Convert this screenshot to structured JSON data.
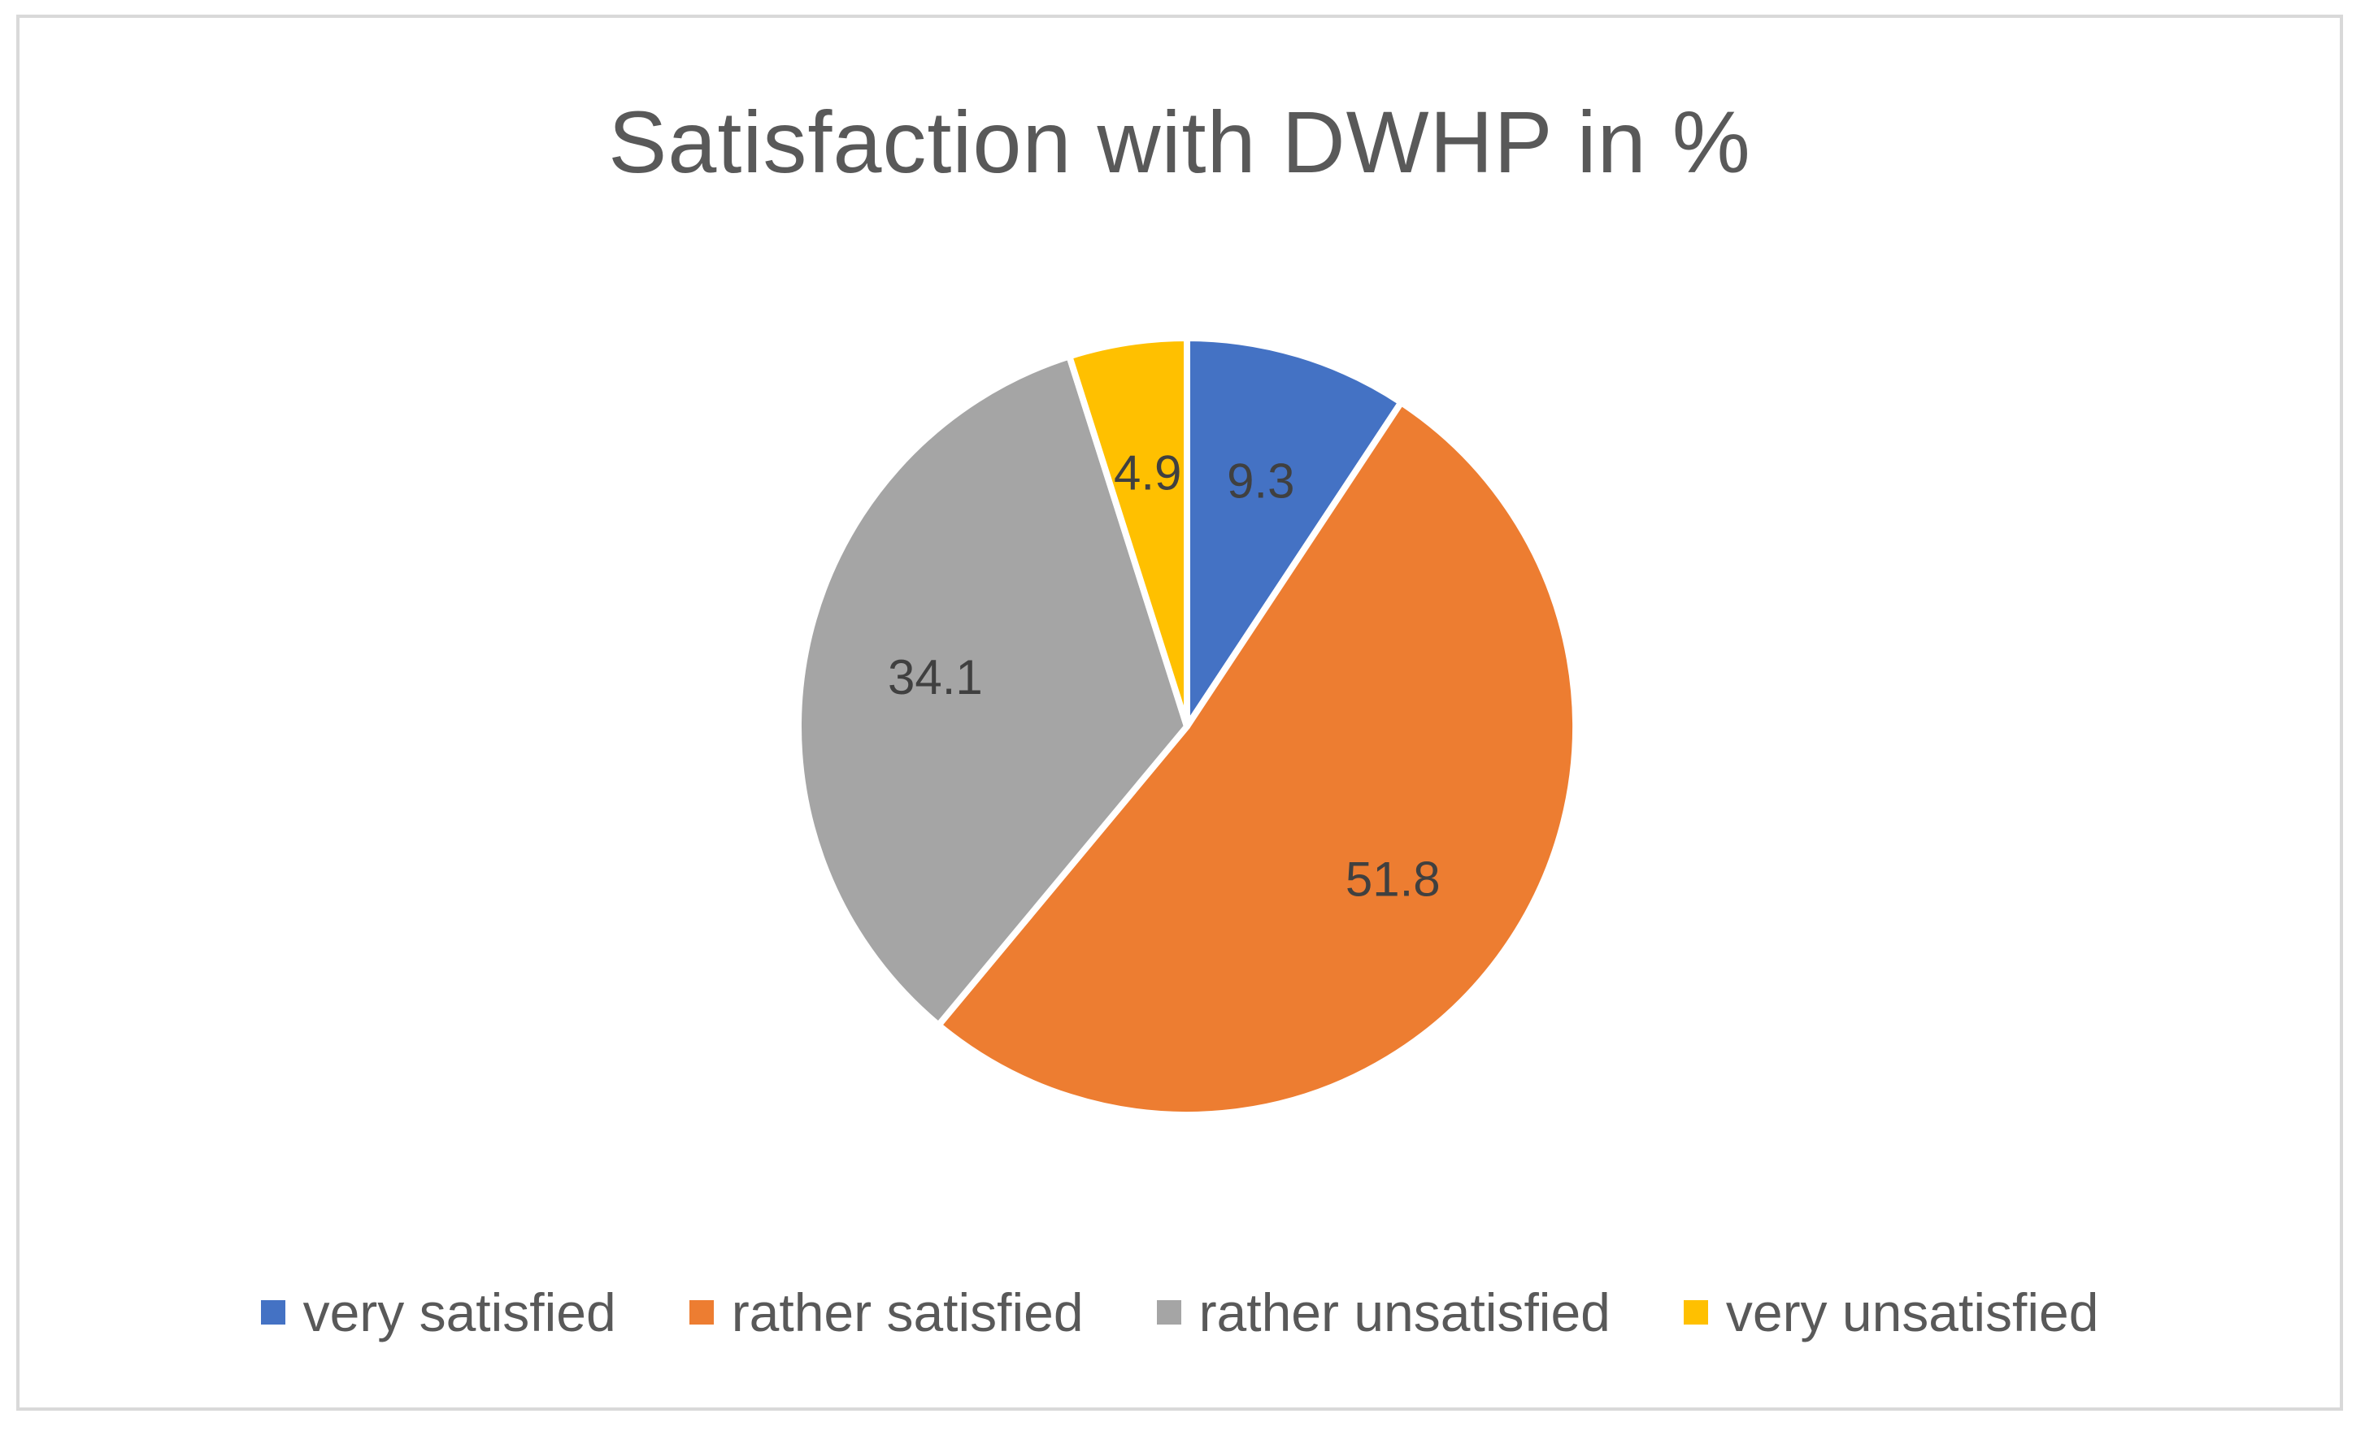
{
  "chart_data": {
    "type": "pie",
    "title": "Satisfaction with DWHP in %",
    "categories": [
      "very satisfied",
      "rather satisfied",
      "rather unsatisfied",
      "very unsatisfied"
    ],
    "values": [
      9.3,
      51.8,
      34.1,
      4.9
    ],
    "value_labels": [
      "9.3",
      "51.8",
      "34.1",
      "4.9"
    ],
    "colors": [
      "#4472c4",
      "#ed7d31",
      "#a5a5a5",
      "#ffc000"
    ],
    "legend_position": "bottom",
    "start_angle": "12 o'clock",
    "direction": "clockwise"
  }
}
